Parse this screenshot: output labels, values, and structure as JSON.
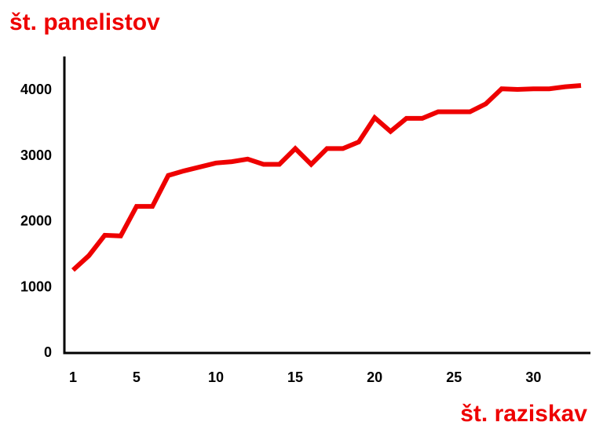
{
  "chart_data": {
    "type": "line",
    "title": "",
    "ylabel": "št. panelistov",
    "xlabel": "št. raziskav",
    "xlim": [
      1,
      33
    ],
    "ylim": [
      0,
      4200
    ],
    "x_ticks": [
      1,
      5,
      10,
      15,
      20,
      25,
      30
    ],
    "y_ticks": [
      0,
      1000,
      2000,
      3000,
      4000
    ],
    "grid": false,
    "series": [
      {
        "color": "#ee0000",
        "x": [
          1,
          2,
          3,
          4,
          5,
          6,
          7,
          8,
          9,
          10,
          11,
          12,
          13,
          14,
          15,
          16,
          17,
          18,
          19,
          20,
          21,
          22,
          23,
          24,
          25,
          26,
          27,
          28,
          29,
          30,
          31,
          32,
          33
        ],
        "y": [
          1250,
          1470,
          1780,
          1770,
          2220,
          2220,
          2690,
          2760,
          2820,
          2880,
          2900,
          2940,
          2860,
          2860,
          3100,
          2860,
          3100,
          3100,
          3200,
          3570,
          3360,
          3560,
          3560,
          3660,
          3660,
          3660,
          3780,
          4010,
          4000,
          4010,
          4010,
          4040,
          4060
        ]
      }
    ]
  }
}
